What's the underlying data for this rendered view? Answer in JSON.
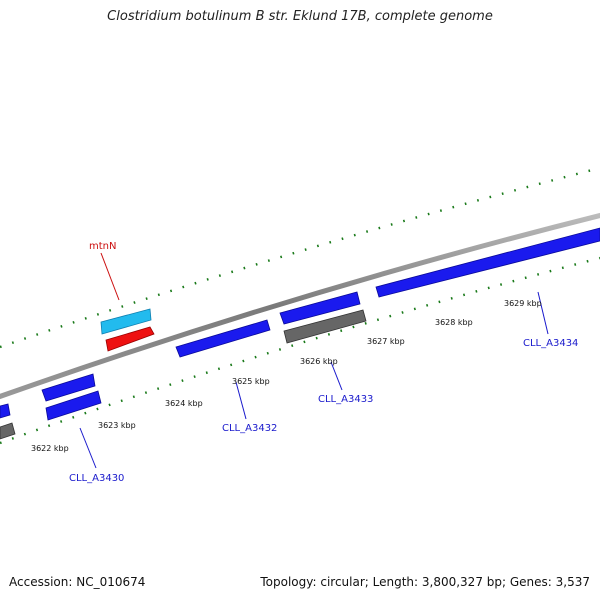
{
  "title": "Clostridium botulinum B str. Eklund 17B, complete genome",
  "footer": {
    "accession": "Accession: NC_010674",
    "summary": "Topology: circular; Length: 3,800,327 bp; Genes: 3,537"
  },
  "colors": {
    "backbone": "#8a8a8a",
    "gene_forward": "#1a1aee",
    "gene_reverse_pseudo": "#666666",
    "gene_highlight": "#22bbee",
    "gene_rna": "#ee1111",
    "tick_marks": "#1a7a1a",
    "label_blue": "#1a1acc",
    "label_red": "#cc1111"
  },
  "tick_labels": [
    {
      "text": "3622 kbp"
    },
    {
      "text": "3623 kbp"
    },
    {
      "text": "3624 kbp"
    },
    {
      "text": "3625 kbp"
    },
    {
      "text": "3626 kbp"
    },
    {
      "text": "3627 kbp"
    },
    {
      "text": "3628 kbp"
    },
    {
      "text": "3629 kbp"
    }
  ],
  "gene_labels": [
    {
      "text": "mtnN"
    },
    {
      "text": "CLL_A3430"
    },
    {
      "text": "CLL_A3432"
    },
    {
      "text": "CLL_A3433"
    },
    {
      "text": "CLL_A3434"
    }
  ]
}
